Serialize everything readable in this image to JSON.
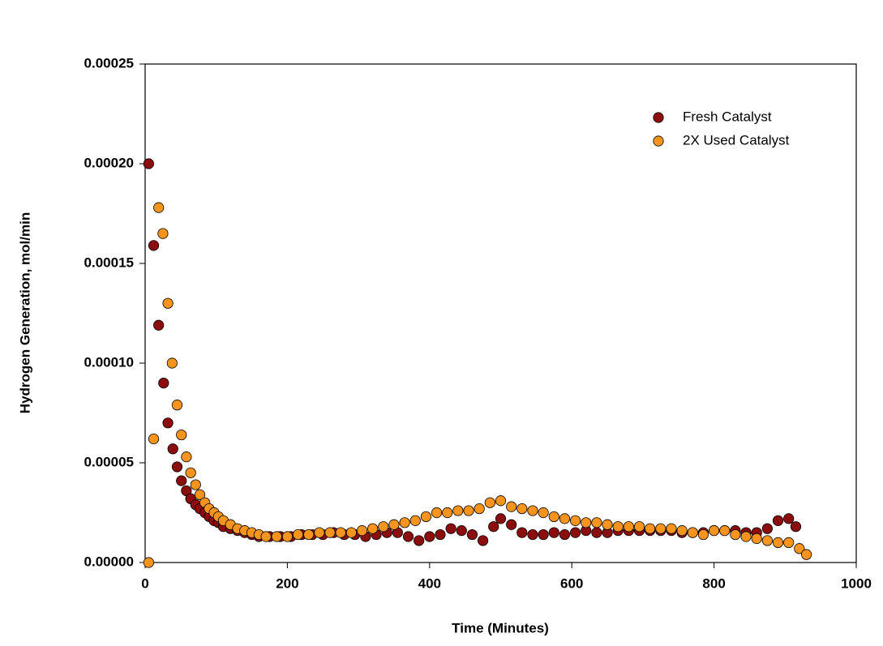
{
  "chart_data": {
    "type": "scatter",
    "xlabel": "Time (Minutes)",
    "ylabel": "Hydrogen Generation, mol/min",
    "xlim": [
      0,
      1000
    ],
    "xticks": [
      0,
      200,
      400,
      600,
      800,
      1000
    ],
    "ylim": [
      0,
      0.00025
    ],
    "yticks": [
      {
        "value": 0,
        "label": "0.00000"
      },
      {
        "value": 5e-05,
        "label": "0.00005"
      },
      {
        "value": 0.0001,
        "label": "0.00010"
      },
      {
        "value": 0.00015,
        "label": "0.00015"
      },
      {
        "value": 0.0002,
        "label": "0.00020"
      },
      {
        "value": 0.00025,
        "label": "0.00025"
      }
    ],
    "legend": "upper right",
    "series": [
      {
        "name": "Fresh Catalyst",
        "color": "#8b0d0d",
        "x": [
          5,
          12,
          19,
          26,
          32,
          39,
          45,
          51,
          58,
          64,
          71,
          77,
          84,
          90,
          97,
          103,
          110,
          120,
          130,
          140,
          150,
          160,
          175,
          190,
          205,
          220,
          235,
          250,
          265,
          280,
          295,
          310,
          325,
          340,
          355,
          370,
          385,
          400,
          415,
          430,
          445,
          460,
          475,
          490,
          500,
          515,
          530,
          545,
          560,
          575,
          590,
          605,
          620,
          635,
          650,
          665,
          680,
          695,
          710,
          725,
          740,
          755,
          770,
          785,
          800,
          815,
          830,
          845,
          860,
          875,
          890,
          905,
          915
        ],
        "values": [
          0.0002,
          0.000159,
          0.000119,
          9e-05,
          7e-05,
          5.7e-05,
          4.8e-05,
          4.1e-05,
          3.6e-05,
          3.2e-05,
          2.9e-05,
          2.7e-05,
          2.5e-05,
          2.3e-05,
          2.1e-05,
          2e-05,
          1.8e-05,
          1.7e-05,
          1.6e-05,
          1.5e-05,
          1.4e-05,
          1.3e-05,
          1.3e-05,
          1.3e-05,
          1.3e-05,
          1.4e-05,
          1.4e-05,
          1.4e-05,
          1.5e-05,
          1.4e-05,
          1.4e-05,
          1.3e-05,
          1.4e-05,
          1.5e-05,
          1.5e-05,
          1.3e-05,
          1.1e-05,
          1.3e-05,
          1.4e-05,
          1.7e-05,
          1.6e-05,
          1.4e-05,
          1.1e-05,
          1.8e-05,
          2.2e-05,
          1.9e-05,
          1.5e-05,
          1.4e-05,
          1.4e-05,
          1.5e-05,
          1.4e-05,
          1.5e-05,
          1.6e-05,
          1.5e-05,
          1.5e-05,
          1.6e-05,
          1.6e-05,
          1.6e-05,
          1.6e-05,
          1.6e-05,
          1.6e-05,
          1.5e-05,
          1.5e-05,
          1.5e-05,
          1.6e-05,
          1.6e-05,
          1.6e-05,
          1.5e-05,
          1.5e-05,
          1.7e-05,
          2.1e-05,
          2.2e-05,
          1.8e-05
        ]
      },
      {
        "name": "2X Used Catalyst",
        "color": "#f7941d",
        "x": [
          5,
          12,
          19,
          25,
          32,
          38,
          45,
          51,
          58,
          64,
          71,
          77,
          84,
          90,
          97,
          103,
          110,
          120,
          130,
          140,
          150,
          160,
          170,
          185,
          200,
          215,
          230,
          245,
          260,
          275,
          290,
          305,
          320,
          335,
          350,
          365,
          380,
          395,
          410,
          425,
          440,
          455,
          470,
          485,
          500,
          515,
          530,
          545,
          560,
          575,
          590,
          605,
          620,
          635,
          650,
          665,
          680,
          695,
          710,
          725,
          740,
          755,
          770,
          785,
          800,
          815,
          830,
          845,
          860,
          875,
          890,
          905,
          920,
          930
        ],
        "values": [
          0,
          6.2e-05,
          0.000178,
          0.000165,
          0.00013,
          0.0001,
          7.9e-05,
          6.4e-05,
          5.3e-05,
          4.5e-05,
          3.9e-05,
          3.4e-05,
          3e-05,
          2.7e-05,
          2.5e-05,
          2.3e-05,
          2.1e-05,
          1.9e-05,
          1.7e-05,
          1.6e-05,
          1.5e-05,
          1.4e-05,
          1.3e-05,
          1.3e-05,
          1.3e-05,
          1.4e-05,
          1.4e-05,
          1.5e-05,
          1.5e-05,
          1.5e-05,
          1.5e-05,
          1.6e-05,
          1.7e-05,
          1.8e-05,
          1.9e-05,
          2e-05,
          2.1e-05,
          2.3e-05,
          2.5e-05,
          2.5e-05,
          2.6e-05,
          2.6e-05,
          2.7e-05,
          3e-05,
          3.1e-05,
          2.8e-05,
          2.7e-05,
          2.6e-05,
          2.5e-05,
          2.3e-05,
          2.2e-05,
          2.1e-05,
          2e-05,
          2e-05,
          1.9e-05,
          1.8e-05,
          1.8e-05,
          1.8e-05,
          1.7e-05,
          1.7e-05,
          1.7e-05,
          1.6e-05,
          1.5e-05,
          1.4e-05,
          1.6e-05,
          1.6e-05,
          1.4e-05,
          1.3e-05,
          1.2e-05,
          1.1e-05,
          1e-05,
          1e-05,
          7e-06,
          4e-06
        ]
      }
    ]
  }
}
